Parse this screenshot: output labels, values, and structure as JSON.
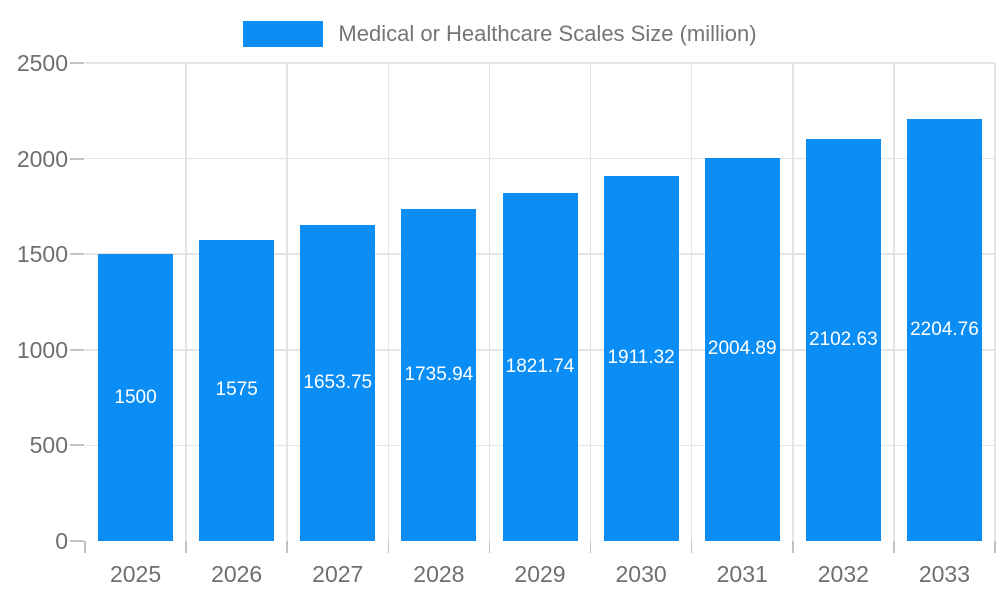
{
  "chart_data": {
    "type": "bar",
    "title": "Medical or Healthcare Scales Size (million)",
    "categories": [
      "2025",
      "2026",
      "2027",
      "2028",
      "2029",
      "2030",
      "2031",
      "2032",
      "2033"
    ],
    "values": [
      1500,
      1575,
      1653.75,
      1735.94,
      1821.74,
      1911.32,
      2004.89,
      2102.63,
      2204.76
    ],
    "bar_labels": [
      "1500",
      "1575",
      "1653.75",
      "1735.94",
      "1821.74",
      "1911.32",
      "2004.89",
      "2102.63",
      "2204.76"
    ],
    "xlabel": "",
    "ylabel": "",
    "ylim": [
      0,
      2500
    ],
    "yticks": [
      0,
      500,
      1000,
      1500,
      2000,
      2500
    ],
    "ytick_labels": [
      "0",
      "500",
      "1000",
      "1500",
      "2000",
      "2500"
    ],
    "grid": true,
    "legend_position": "top",
    "colors": {
      "bar": "#0a8df5",
      "grid": "#e5e5e5",
      "axis_line": "#a6a6a6",
      "tick_mark": "#c2c2c2",
      "tick_label_text": "#6f6f6f",
      "legend_text": "#757575",
      "bar_label_text": "#ffffff",
      "background": "#ffffff"
    }
  }
}
